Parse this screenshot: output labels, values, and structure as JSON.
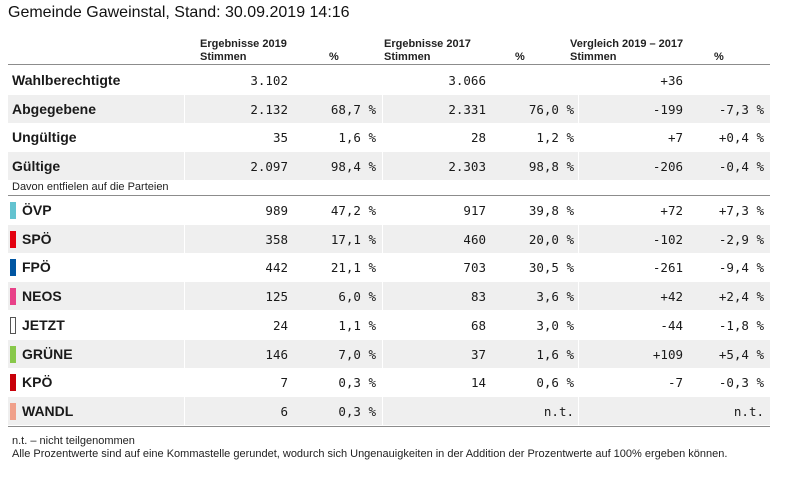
{
  "title": "Gemeinde Gaweinstal, Stand: 30.09.2019 14:16",
  "headers": {
    "g2019": "Ergebnisse 2019",
    "g2019_sub": "Stimmen",
    "g2019_pct": "%",
    "g2017": "Ergebnisse 2017",
    "g2017_sub": "Stimmen",
    "g2017_pct": "%",
    "cmp": "Vergleich 2019 – 2017",
    "cmp_sub": "Stimmen",
    "cmp_pct": "%"
  },
  "summary": [
    {
      "label": "Wahlberechtigte",
      "v19": "3.102",
      "p19": "",
      "v17": "3.066",
      "p17": "",
      "dv": "+36",
      "dp": ""
    },
    {
      "label": "Abgegebene",
      "v19": "2.132",
      "p19": "68,7 %",
      "v17": "2.331",
      "p17": "76,0 %",
      "dv": "-199",
      "dp": "-7,3 %"
    },
    {
      "label": "Ungültige",
      "v19": "35",
      "p19": "1,6 %",
      "v17": "28",
      "p17": "1,2 %",
      "dv": "+7",
      "dp": "+0,4 %"
    },
    {
      "label": "Gültige",
      "v19": "2.097",
      "p19": "98,4 %",
      "v17": "2.303",
      "p17": "98,8 %",
      "dv": "-206",
      "dp": "-0,4 %"
    }
  ],
  "davon": "Davon entfielen auf die Parteien",
  "parties": [
    {
      "label": "ÖVP",
      "color": "#63c3d0",
      "v19": "989",
      "p19": "47,2 %",
      "v17": "917",
      "p17": "39,8 %",
      "dv": "+72",
      "dp": "+7,3 %"
    },
    {
      "label": "SPÖ",
      "color": "#e3000f",
      "v19": "358",
      "p19": "17,1 %",
      "v17": "460",
      "p17": "20,0 %",
      "dv": "-102",
      "dp": "-2,9 %"
    },
    {
      "label": "FPÖ",
      "color": "#0056a2",
      "v19": "442",
      "p19": "21,1 %",
      "v17": "703",
      "p17": "30,5 %",
      "dv": "-261",
      "dp": "-9,4 %"
    },
    {
      "label": "NEOS",
      "color": "#e84188",
      "v19": "125",
      "p19": "6,0 %",
      "v17": "83",
      "p17": "3,6 %",
      "dv": "+42",
      "dp": "+2,4 %"
    },
    {
      "label": "JETZT",
      "color": "#ffffff",
      "v19": "24",
      "p19": "1,1 %",
      "v17": "68",
      "p17": "3,0 %",
      "dv": "-44",
      "dp": "-1,8 %"
    },
    {
      "label": "GRÜNE",
      "color": "#88c84a",
      "v19": "146",
      "p19": "7,0 %",
      "v17": "37",
      "p17": "1,6 %",
      "dv": "+109",
      "dp": "+5,4 %"
    },
    {
      "label": "KPÖ",
      "color": "#c8000a",
      "v19": "7",
      "p19": "0,3 %",
      "v17": "14",
      "p17": "0,6 %",
      "dv": "-7",
      "dp": "-0,3 %"
    },
    {
      "label": "WANDL",
      "color": "#f0a08a",
      "v19": "6",
      "p19": "0,3 %",
      "v17": "",
      "p17": "n.t.",
      "dv": "",
      "dp": "n.t."
    }
  ],
  "footnotes": [
    "n.t. – nicht teilgenommen",
    "Alle Prozentwerte sind auf eine Kommastelle gerundet, wodurch sich Ungenauigkeiten in der Addition der Prozentwerte auf 100% ergeben können."
  ]
}
